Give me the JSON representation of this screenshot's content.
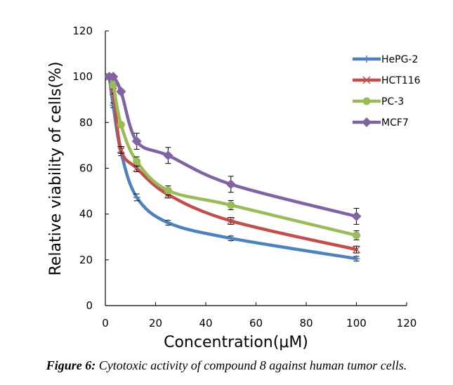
{
  "chart_data": {
    "type": "line",
    "title": "",
    "xlabel": "Concentration(μM)",
    "ylabel": "Relative viability of cells(%)",
    "xlim": [
      0,
      120
    ],
    "ylim": [
      0,
      120
    ],
    "xticks": [
      0,
      20,
      40,
      60,
      80,
      100,
      120
    ],
    "yticks": [
      0,
      20,
      40,
      60,
      80,
      100,
      120
    ],
    "grid": false,
    "legend_position": "top-right",
    "x": [
      1.56,
      3.125,
      6.25,
      12.5,
      25,
      50,
      100
    ],
    "series": [
      {
        "name": "HePG-2",
        "color": "#4F81BD",
        "marker": "plus",
        "values": [
          100,
          87.5,
          67,
          47.3,
          36.2,
          29.4,
          20.5
        ],
        "errors": [
          0.5,
          1,
          1.5,
          1.5,
          1,
          1,
          1
        ]
      },
      {
        "name": "HCT116",
        "color": "#C0504D",
        "marker": "x",
        "values": [
          100,
          93.5,
          68,
          60,
          48.5,
          37,
          24.5
        ],
        "errors": [
          0.5,
          1,
          1.5,
          1.5,
          1.5,
          1.5,
          1.5
        ]
      },
      {
        "name": "PC-3",
        "color": "#9BBB59",
        "marker": "circle",
        "values": [
          100,
          96.3,
          79,
          63,
          50.3,
          43.9,
          30.7
        ],
        "errors": [
          0.5,
          1,
          1,
          2,
          2,
          2,
          2
        ]
      },
      {
        "name": "MCF7",
        "color": "#8064A2",
        "marker": "diamond",
        "values": [
          100,
          100,
          93.5,
          71.8,
          65.6,
          53,
          39
        ],
        "errors": [
          0.5,
          0.5,
          1,
          3.5,
          3.5,
          3.5,
          3.5
        ]
      }
    ]
  },
  "caption": {
    "label": "Figure 6:",
    "text": " Cytotoxic activity of compound 8 against human tumor cells."
  }
}
